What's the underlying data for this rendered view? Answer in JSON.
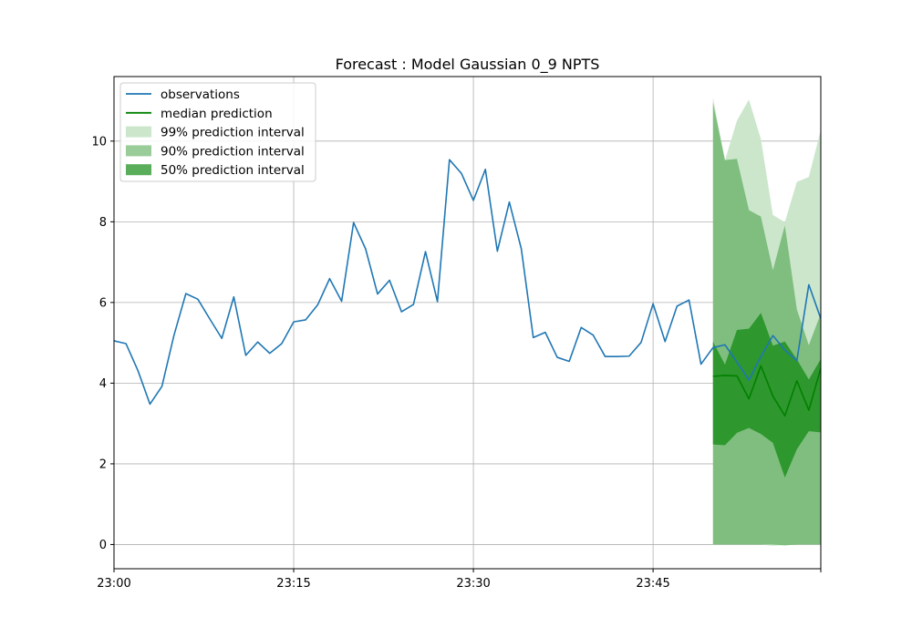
{
  "chart_data": {
    "type": "line",
    "title": "Forecast : Model Gaussian 0_9 NPTS",
    "xlabel": "",
    "ylabel": "",
    "x_ticks": [
      {
        "minute": 0,
        "label": "23:00"
      },
      {
        "minute": 15,
        "label": "23:15"
      },
      {
        "minute": 30,
        "label": "23:30"
      },
      {
        "minute": 45,
        "label": "23:45"
      },
      {
        "minute": 59,
        "label": ""
      }
    ],
    "y_ticks": [
      0,
      2,
      4,
      6,
      8,
      10
    ],
    "xlim": [
      0,
      59
    ],
    "ylim": [
      -0.6,
      11.6
    ],
    "grid": true,
    "legend_position": "top-left",
    "colors": {
      "observations": "#1f77b4",
      "median": "#008000",
      "pi99": "#cce6cc",
      "pi90": "#7fbe7f",
      "pi50": "#2e972e"
    },
    "legend": [
      {
        "label": "observations",
        "kind": "line",
        "color": "#1f77b4"
      },
      {
        "label": "median prediction",
        "kind": "line",
        "color": "#008000"
      },
      {
        "label": "99% prediction interval",
        "kind": "patch",
        "color": "#cce6cc"
      },
      {
        "label": "90% prediction interval",
        "kind": "patch",
        "color": "#99cc99"
      },
      {
        "label": "50% prediction interval",
        "kind": "patch",
        "color": "#5aad5a"
      }
    ],
    "observations": {
      "name": "observations",
      "x": [
        0,
        1,
        2,
        3,
        4,
        5,
        6,
        7,
        8,
        9,
        10,
        11,
        12,
        13,
        14,
        15,
        16,
        17,
        18,
        19,
        20,
        21,
        22,
        23,
        24,
        25,
        26,
        27,
        28,
        29,
        30,
        31,
        32,
        33,
        34,
        35,
        36,
        37,
        38,
        39,
        40,
        41,
        42,
        43,
        44,
        45,
        46,
        47,
        48,
        49,
        50,
        51,
        52,
        53,
        54,
        55,
        56,
        57,
        58,
        59
      ],
      "y": [
        5.05,
        4.98,
        4.31,
        3.48,
        3.92,
        5.18,
        6.22,
        6.08,
        5.59,
        5.11,
        6.14,
        4.69,
        5.02,
        4.74,
        4.98,
        5.52,
        5.57,
        5.94,
        6.59,
        6.03,
        7.98,
        7.33,
        6.21,
        6.55,
        5.77,
        5.95,
        7.26,
        6.02,
        9.54,
        9.2,
        8.53,
        9.3,
        7.27,
        8.49,
        7.33,
        5.13,
        5.26,
        4.64,
        4.54,
        5.38,
        5.19,
        4.66,
        4.66,
        4.67,
        5.01,
        5.97,
        5.03,
        5.91,
        6.06,
        4.47,
        4.88,
        4.95,
        4.52,
        4.08,
        4.66,
        5.18,
        4.82,
        4.56,
        6.44,
        5.6
      ]
    },
    "forecast": {
      "x": [
        50,
        51,
        52,
        53,
        54,
        55,
        56,
        57,
        58,
        59
      ],
      "median": [
        4.17,
        4.19,
        4.18,
        3.61,
        4.43,
        3.68,
        3.19,
        4.06,
        3.33,
        4.37
      ],
      "pi50_low": [
        2.48,
        2.46,
        2.77,
        2.89,
        2.74,
        2.52,
        1.66,
        2.36,
        2.81,
        2.78
      ],
      "pi50_high": [
        5.03,
        4.46,
        5.32,
        5.35,
        5.74,
        4.93,
        5.03,
        4.59,
        4.09,
        4.6
      ],
      "pi90_low": [
        0.0,
        0.0,
        0.0,
        0.0,
        0.0,
        0.0,
        -0.02,
        0.0,
        0.0,
        0.0
      ],
      "pi90_high": [
        10.95,
        9.53,
        9.56,
        8.29,
        8.13,
        6.8,
        7.91,
        5.83,
        4.94,
        5.73
      ],
      "pi99_low": [
        0.0,
        0.46,
        0.0,
        0.0,
        0.0,
        -0.03,
        -0.01,
        0.18,
        0.12,
        -0.02
      ],
      "pi99_high": [
        11.08,
        9.52,
        10.51,
        11.03,
        10.05,
        8.17,
        7.99,
        8.99,
        9.11,
        10.28
      ]
    }
  }
}
